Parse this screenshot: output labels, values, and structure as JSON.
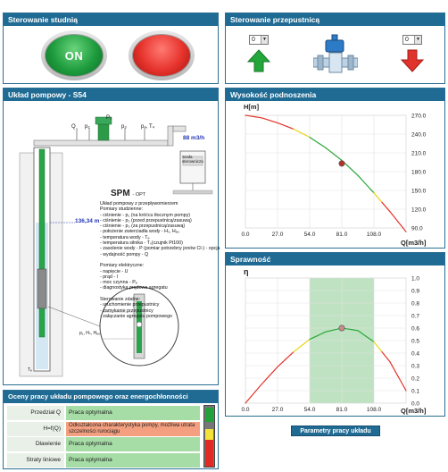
{
  "panels": {
    "well_control": "Sterowanie studnią",
    "valve_control": "Sterowanie przepustnicą",
    "pump_system": "Układ pompowy - S54",
    "head_chart": "Wysokość podnoszenia",
    "efficiency_chart": "Sprawność",
    "evaluation": "Oceny pracy układu pompowego oraz energochłonności"
  },
  "buttons": {
    "on_label": "ON",
    "parameters": "Parametry pracy układu"
  },
  "valve": {
    "select_left": "0",
    "select_right": "0"
  },
  "diagram": {
    "labels_top": [
      "Q",
      "p₂",
      "P₁",
      "p₃",
      "p₄, T₄"
    ],
    "level_top": "88 m3/h",
    "level_water": "136,34 m",
    "control_box": "Szafa sterownicza",
    "title": "SPM",
    "title_suffix": "- OPT",
    "desc_lines": [
      "Układ pompowy z przepływomierzem",
      "Pomiary studzienne:",
      "- ciśnienie - p₁ (na króćcu tłocznym pompy)",
      "- ciśnienie - p₂ (przed przepustnicą/zasuwą)",
      "- ciśnienie - p₃ (za przepustnicą/zasuwą)",
      "- położenie zwierciadła wody - Hₛ, Hₑᵤ",
      "- temperatura wody - Tₑ",
      "- temperatura silnika - Tₛ(czujnik Pt100)",
      "- zasolenie wody - P (pomiar potrzebny jonów Cl-) - opcja",
      "- wydajność pompy - Q",
      "",
      "Pomiary elektryczne:",
      "- napięcie -      U",
      "- prąd -           I",
      "- moc czynna - Pₑ",
      "- diagnostyka prądowa agregatu",
      "",
      "Sterowanie zdalne:",
      "- uruchomienie przepustnicy",
      "- zamykanie przepustnicy",
      "- załączanie agregatu pompowego"
    ],
    "side_label": "p₁, Hₛ, Hₑᵤ",
    "te_label": "Tₑ"
  },
  "head_chart_data": {
    "type": "line",
    "ylabel": "H[m]",
    "xlabel": "Q[m3/h]",
    "x_ticks": [
      "0.0",
      "27.0",
      "54.0",
      "81.0",
      "108.0"
    ],
    "y_ticks": [
      "270.0",
      "240.0",
      "210.0",
      "180.0",
      "150.0",
      "120.0",
      "90.0"
    ],
    "xlim": [
      0,
      135
    ],
    "ylim": [
      90,
      270
    ],
    "curve_x": [
      0,
      13.5,
      27,
      40.5,
      54,
      67.5,
      81,
      94.5,
      108,
      121.5,
      135
    ],
    "curve_y": [
      270,
      266,
      258,
      248,
      235,
      218,
      198,
      174,
      146,
      116,
      84
    ],
    "operating_point": {
      "x": 81,
      "y": 193
    }
  },
  "efficiency_chart_data": {
    "type": "line",
    "ylabel": "η",
    "xlabel": "Q[m3/h]",
    "x_ticks": [
      "0.0",
      "27.0",
      "54.0",
      "81.0",
      "108.0"
    ],
    "y_ticks": [
      "1.0",
      "0.9",
      "0.8",
      "0.7",
      "0.6",
      "0.5",
      "0.4",
      "0.3",
      "0.2",
      "0.1",
      "0.0"
    ],
    "xlim": [
      0,
      135
    ],
    "ylim": [
      0,
      1.0
    ],
    "optimal_range": [
      54,
      108
    ],
    "curve_x": [
      0,
      13.5,
      27,
      40.5,
      54,
      67.5,
      81,
      94.5,
      108,
      121.5,
      135
    ],
    "curve_y": [
      0.0,
      0.15,
      0.29,
      0.41,
      0.51,
      0.57,
      0.6,
      0.58,
      0.49,
      0.33,
      0.1
    ],
    "operating_point": {
      "x": 81,
      "y": 0.6
    }
  },
  "evaluation": {
    "rows": [
      {
        "label": "Przedział Q",
        "value": "Praca optymalna",
        "color": "#a6dca6"
      },
      {
        "label": "H=f(Q)",
        "value": "Odkształcona charakterystyka pompy, możliwa utrata szczelności rurociągu",
        "color": "#f4a080"
      },
      {
        "label": "Dławienie",
        "value": "Praca optymalna",
        "color": "#a6dca6"
      },
      {
        "label": "Straty liniowe",
        "value": "Praca optymalna",
        "color": "#a6dca6"
      }
    ],
    "indicator_colors": [
      "#22a03a",
      "#f2e23a",
      "#e02a24"
    ]
  },
  "colors": {
    "accent": "#1f6b94",
    "curve_red": "#e2362c",
    "curve_yellow": "#e8d61e",
    "curve_green": "#2ea83c"
  }
}
